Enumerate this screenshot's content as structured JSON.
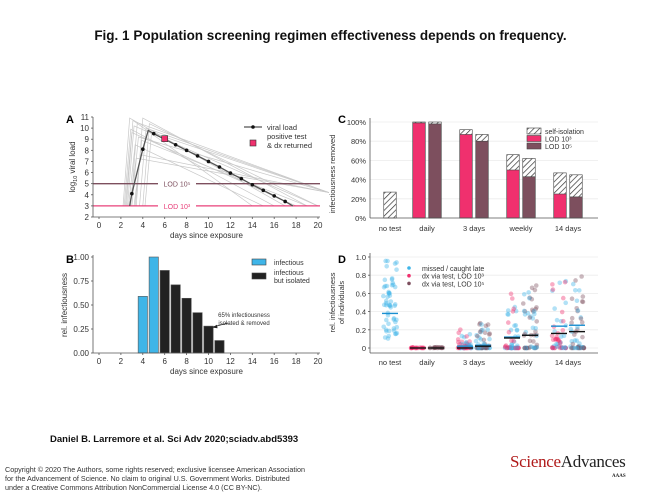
{
  "title": "Fig. 1 Population screening regimen effectiveness depends on frequency.",
  "citation": "Daniel B. Larremore et al. Sci Adv 2020;sciadv.abd5393",
  "copyright": [
    "Copyright © 2020 The Authors, some rights reserved; exclusive licensee American Association",
    "for the Advancement of Science. No claim to original U.S. Government Works. Distributed",
    "under a Creative Commons Attribution NonCommercial License 4.0 (CC BY-NC)."
  ],
  "logo": {
    "science": "Science",
    "advances": "Advances",
    "aaas": "AAAS"
  },
  "colors": {
    "pink": "#f0306e",
    "mauve": "#7d4f5e",
    "blue": "#3fb5e8",
    "black": "#222222",
    "lod5": "#7d4f5e",
    "lod3": "#e8407a",
    "grey_traj": "#c8c8c8"
  },
  "chart_data": [
    {
      "panel": "A",
      "type": "line",
      "xlabel": "days since exposure",
      "ylabel": "log10 viral load",
      "xlim": [
        0,
        21
      ],
      "ylim": [
        2,
        11
      ],
      "xticks": [
        0,
        2,
        4,
        6,
        8,
        10,
        12,
        14,
        16,
        18,
        20
      ],
      "yticks": [
        2,
        3,
        4,
        5,
        6,
        7,
        8,
        9,
        10,
        11
      ],
      "series": [
        {
          "name": "viral load",
          "x": [
            2.8,
            3,
            4,
            4.5,
            5,
            6,
            7,
            8,
            9,
            10,
            11,
            12,
            13,
            14,
            15,
            16,
            17,
            17.7
          ],
          "y": [
            3,
            4.1,
            8.1,
            9.8,
            9.5,
            9.0,
            8.5,
            8.0,
            7.5,
            7.0,
            6.5,
            5.95,
            5.45,
            4.9,
            4.4,
            3.9,
            3.4,
            3
          ],
          "markers_x": [
            3,
            4,
            5,
            6,
            7,
            8,
            9,
            10,
            11,
            12,
            13,
            14,
            15,
            16,
            17
          ]
        }
      ],
      "positive_test": {
        "label": "positive test & dx returned",
        "x": 6,
        "y": 9.05
      },
      "thresholds": [
        {
          "label": "LOD 10⁵",
          "y": 5
        },
        {
          "label": "LOD 10³",
          "y": 3
        }
      ],
      "legend": [
        "viral load",
        "positive test",
        "& dx returned"
      ],
      "legend_position": "top-right"
    },
    {
      "panel": "B",
      "type": "bar",
      "xlabel": "days since exposure",
      "ylabel": "rel. infectiousness",
      "xlim": [
        0,
        21
      ],
      "ylim": [
        0,
        1
      ],
      "xticks": [
        0,
        2,
        4,
        6,
        8,
        10,
        12,
        14,
        16,
        18,
        20
      ],
      "yticks": [
        "0.00",
        "0.25",
        "0.50",
        "0.75",
        "1.00"
      ],
      "x": [
        4,
        5,
        6,
        7,
        8,
        9,
        10,
        11
      ],
      "values": [
        0.59,
        1.0,
        0.86,
        0.71,
        0.57,
        0.42,
        0.28,
        0.13
      ],
      "status": [
        "infectious",
        "infectious",
        "isolated",
        "isolated",
        "isolated",
        "isolated",
        "isolated",
        "isolated"
      ],
      "legend": [
        "infectious",
        "infectious",
        "but isolated"
      ],
      "legend_position": "top-right",
      "annotation": [
        "65% infectiousness",
        "isolated & removed"
      ]
    },
    {
      "panel": "C",
      "type": "bar",
      "ylabel": "infectiousness removed",
      "ylim": [
        0,
        100
      ],
      "yticks": [
        "0%",
        "20%",
        "40%",
        "60%",
        "80%",
        "100%"
      ],
      "categories": [
        "no test",
        "daily",
        "3 days",
        "weekly",
        "14 days"
      ],
      "series": [
        {
          "name": "LOD 10³",
          "values": [
            null,
            99,
            87,
            50,
            25
          ],
          "self_isolation_total": [
            27,
            100,
            92,
            66,
            47
          ]
        },
        {
          "name": "LOD 10⁵",
          "values": [
            null,
            98,
            80,
            43,
            22
          ],
          "self_isolation_total": [
            null,
            100,
            87,
            62,
            45
          ]
        }
      ],
      "legend": [
        "self-isolation",
        "LOD 10³",
        "LOD 10⁵"
      ],
      "legend_position": "top-right"
    },
    {
      "panel": "D",
      "type": "scatter",
      "ylabel": "rel. infectiousness of individuals",
      "ylim": [
        0,
        1
      ],
      "yticks": [
        "0",
        "0.2",
        "0.4",
        "0.6",
        "0.8",
        "1.0"
      ],
      "categories": [
        "no test",
        "daily",
        "3 days",
        "weekly",
        "14 days"
      ],
      "legend": [
        "missed / caught late",
        "dx via test, LOD 10³",
        "dx via test, LOD 10⁵"
      ],
      "legend_position": "top-left",
      "groups": [
        {
          "category": "no test",
          "series": "missed",
          "range": [
            0.1,
            1.0
          ],
          "mean": 0.38
        },
        {
          "category": "daily",
          "series": "LOD 10³",
          "range": [
            0,
            0.01
          ],
          "mean": 0.0
        },
        {
          "category": "daily",
          "series": "LOD 10⁵",
          "range": [
            0,
            0.01
          ],
          "mean": 0.0
        },
        {
          "category": "3 days",
          "series": "LOD 10³",
          "range": [
            0,
            0.22
          ],
          "mean": 0.02,
          "mean_dx": 0.0
        },
        {
          "category": "3 days",
          "series": "LOD 10⁵",
          "range": [
            0,
            0.32
          ],
          "mean": 0.03,
          "mean_dx": 0.02
        },
        {
          "category": "weekly",
          "series": "LOD 10³",
          "range": [
            0,
            0.66
          ],
          "mean": 0.12,
          "mean_dx": 0.11
        },
        {
          "category": "weekly",
          "series": "LOD 10⁵",
          "range": [
            0,
            0.71
          ],
          "mean": 0.14,
          "mean_dx": 0.14
        },
        {
          "category": "14 days",
          "series": "LOD 10³",
          "range": [
            0,
            0.85
          ],
          "mean": 0.24,
          "mean_dx": 0.16
        },
        {
          "category": "14 days",
          "series": "LOD 10⁵",
          "range": [
            0,
            0.86
          ],
          "mean": 0.25,
          "mean_dx": 0.18
        }
      ]
    }
  ]
}
